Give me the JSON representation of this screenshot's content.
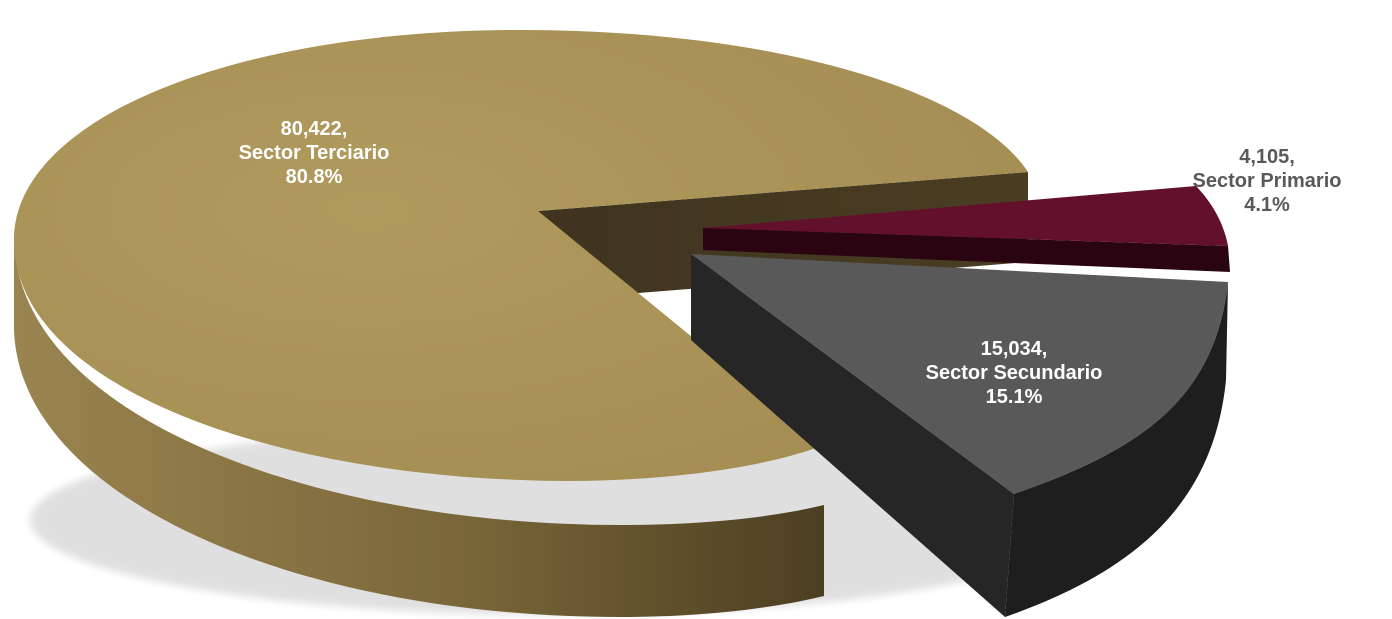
{
  "chart_data": {
    "type": "pie",
    "categories": [
      "Sector Terciario",
      "Sector Primario",
      "Sector Secundario"
    ],
    "values": [
      80422,
      4105,
      15034
    ],
    "percentages": [
      "80.8%",
      "4.1%",
      "15.1%"
    ],
    "value_labels": [
      "80,422,",
      "4,105,",
      "15,034,"
    ],
    "colors": [
      "#ad9659",
      "#63102d",
      "#595959"
    ],
    "side_colors": [
      "#6c5c33",
      "#2a0410",
      "#262626"
    ],
    "exploded": [
      "Sector Primario",
      "Sector Secundario"
    ],
    "legend": false
  }
}
